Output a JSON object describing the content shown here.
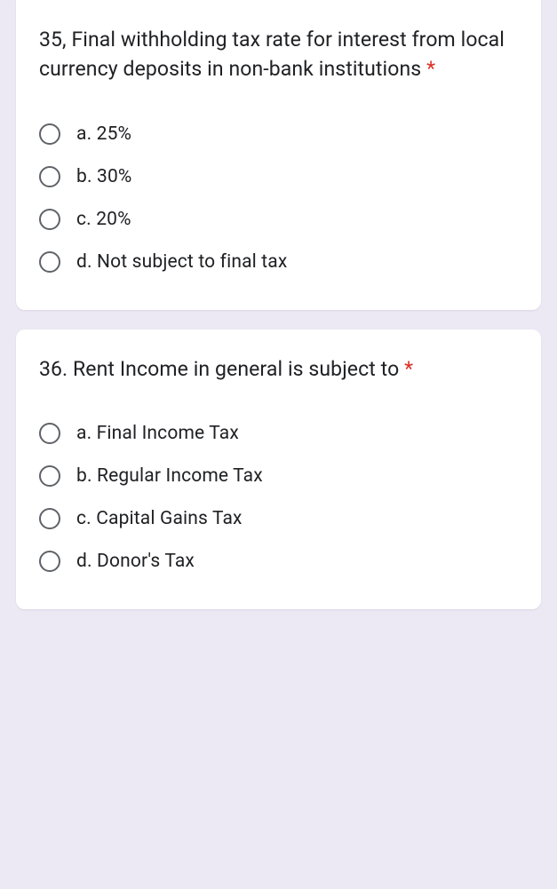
{
  "colors": {
    "page_bg": "#ece9f4",
    "card_bg": "#ffffff",
    "text": "#202124",
    "required": "#d93025",
    "radio_border": "#5f6368"
  },
  "typography": {
    "title_fontsize": 23,
    "option_fontsize": 21,
    "font_family": "Roboto, Arial, sans-serif"
  },
  "questions": [
    {
      "title": "35, Final withholding tax rate for interest from local currency deposits in non-bank institutions",
      "required_marker": "*",
      "options": [
        "a. 25%",
        "b. 30%",
        "c. 20%",
        "d. Not subject to final tax"
      ]
    },
    {
      "title": "36. Rent Income in general is subject to",
      "required_marker": "*",
      "options": [
        "a. Final Income Tax",
        "b. Regular Income Tax",
        "c. Capital Gains Tax",
        "d. Donor's Tax"
      ]
    }
  ]
}
